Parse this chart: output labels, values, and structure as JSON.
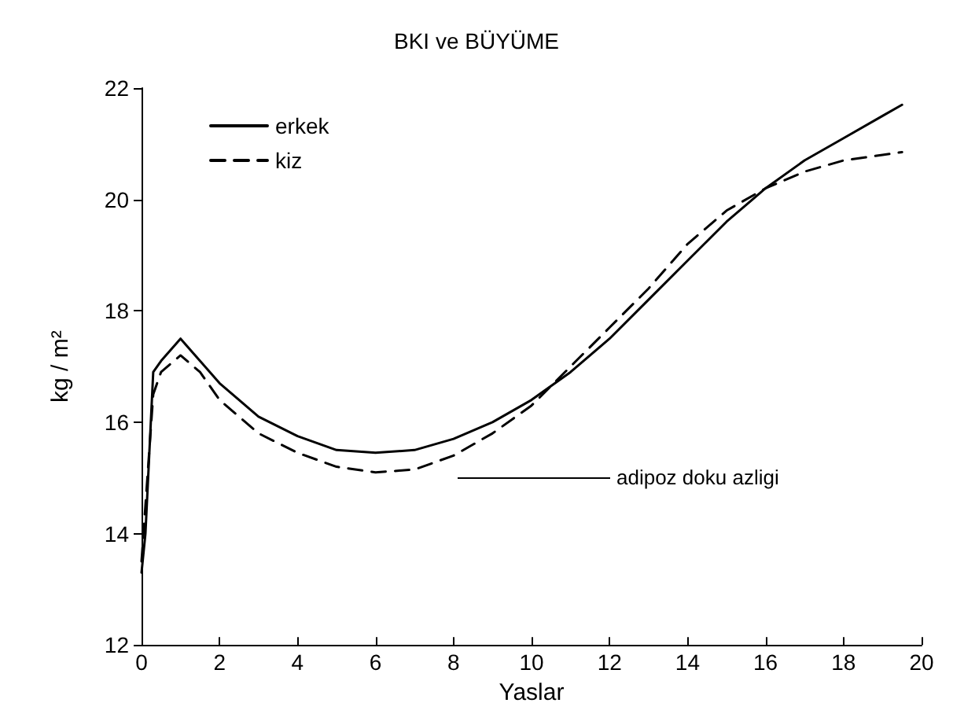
{
  "chart_data": {
    "type": "line",
    "title": "BKI ve BÜYÜME",
    "xlabel": "Yaslar",
    "ylabel": "kg / m²",
    "xlim": [
      0,
      20
    ],
    "xticks": [
      0,
      2,
      4,
      6,
      8,
      10,
      12,
      14,
      16,
      18,
      20
    ],
    "ylim": [
      12,
      22
    ],
    "yticks": [
      12,
      14,
      16,
      18,
      20,
      22
    ],
    "grid": false,
    "legend": "top left",
    "marker": "none",
    "annotations": [
      "adipoz doku azligi"
    ],
    "series": [
      {
        "name": "erkek",
        "color": "#000000",
        "line_style": "solid",
        "x": [
          0,
          0.1,
          0.3,
          0.5,
          1,
          1.5,
          2,
          3,
          4,
          5,
          6,
          7,
          8,
          9,
          10,
          11,
          12,
          13,
          14,
          15,
          16,
          17,
          18,
          19,
          19.5
        ],
        "values": [
          13.3,
          14,
          16.9,
          17.1,
          17.5,
          17.1,
          16.7,
          16.1,
          15.75,
          15.5,
          15.45,
          15.5,
          15.7,
          16,
          16.4,
          16.9,
          17.5,
          18.2,
          18.9,
          19.6,
          20.2,
          20.7,
          21.1,
          21.5,
          21.7
        ]
      },
      {
        "name": "kiz",
        "color": "#000000",
        "line_style": "dashed",
        "x": [
          0,
          0.3,
          0.5,
          1,
          1.5,
          2,
          3,
          4,
          5,
          6,
          7,
          8,
          9,
          10,
          11,
          12,
          13,
          14,
          15,
          16,
          17,
          18,
          19,
          19.5
        ],
        "values": [
          13.5,
          16.5,
          16.9,
          17.2,
          16.9,
          16.4,
          15.8,
          15.45,
          15.2,
          15.1,
          15.15,
          15.4,
          15.8,
          16.3,
          17,
          17.7,
          18.4,
          19.2,
          19.8,
          20.2,
          20.5,
          20.7,
          20.8,
          20.85
        ]
      }
    ]
  }
}
